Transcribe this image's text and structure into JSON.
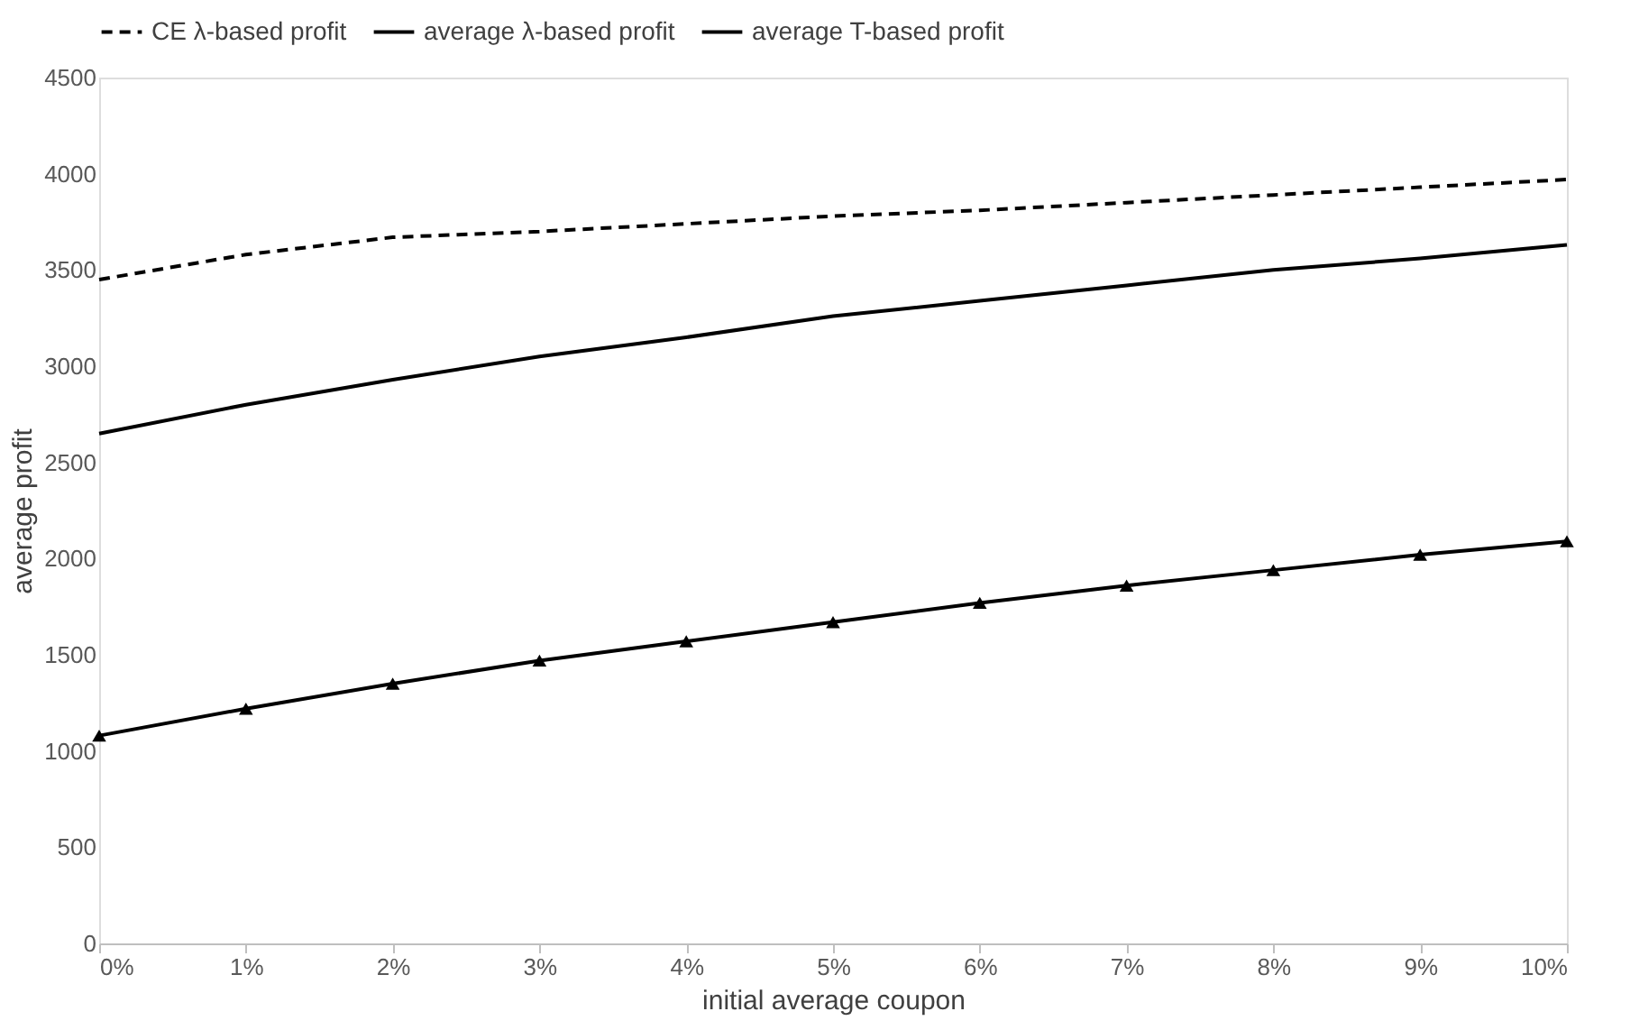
{
  "chart_data": {
    "type": "line",
    "xlabel": "initial average coupon",
    "ylabel": "average profit",
    "categories": [
      "0%",
      "1%",
      "2%",
      "3%",
      "4%",
      "5%",
      "6%",
      "7%",
      "8%",
      "9%",
      "10%"
    ],
    "series": [
      {
        "name": "CE λ-based profit",
        "color": "#000000",
        "line_style": "dashed",
        "marker": "none",
        "values": [
          3450,
          3580,
          3670,
          3700,
          3740,
          3780,
          3810,
          3850,
          3890,
          3930,
          3970
        ]
      },
      {
        "name": "average λ-based profit",
        "color": "#000000",
        "line_style": "solid",
        "marker": "none",
        "values": [
          2650,
          2800,
          2930,
          3050,
          3150,
          3260,
          3340,
          3420,
          3500,
          3560,
          3630
        ]
      },
      {
        "name": "average T-based profit",
        "color": "#000000",
        "line_style": "solid",
        "marker": "triangle",
        "values": [
          1080,
          1220,
          1350,
          1470,
          1570,
          1670,
          1770,
          1860,
          1940,
          2020,
          2090
        ]
      }
    ],
    "ylim": [
      0,
      4500
    ],
    "yticks": [
      0,
      500,
      1000,
      1500,
      2000,
      2500,
      3000,
      3500,
      4000,
      4500
    ],
    "grid": false,
    "legend": "top"
  }
}
